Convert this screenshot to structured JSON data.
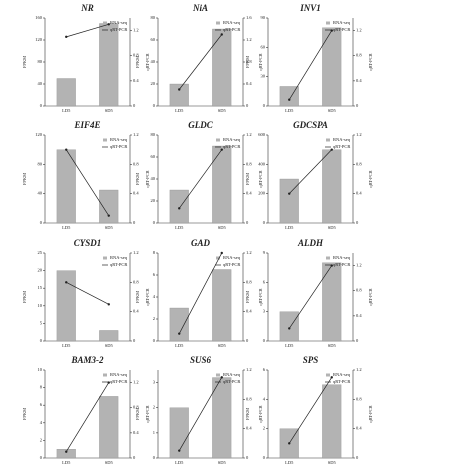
{
  "chart_data": [
    {
      "type": "bar",
      "title": "NR",
      "categories": [
        "LD5",
        "SD5"
      ],
      "ylabel": "FPKM",
      "y2label": "qRT-PCR",
      "series": [
        {
          "name": "RNA-seq",
          "color": "#b3b3b3",
          "values": [
            50,
            150
          ]
        },
        {
          "name": "qRT-PCR",
          "color": "#222222",
          "axis": "y2",
          "values": [
            1.1,
            1.3
          ]
        }
      ],
      "ylim": [
        0,
        160
      ],
      "yticks": [
        0,
        40,
        80,
        120,
        160
      ],
      "y2lim": [
        0,
        1.4
      ],
      "y2ticks": [
        0,
        0.4,
        0.8,
        1.2
      ]
    },
    {
      "type": "bar",
      "title": "NiA",
      "categories": [
        "LD5",
        "SD5"
      ],
      "ylabel": "FPKM",
      "y2label": "qRT-PCR",
      "series": [
        {
          "name": "RNA-seq",
          "color": "#b3b3b3",
          "values": [
            20,
            70
          ]
        },
        {
          "name": "qRT-PCR",
          "color": "#222222",
          "axis": "y2",
          "values": [
            0.3,
            1.3
          ]
        }
      ],
      "ylim": [
        0,
        80
      ],
      "yticks": [
        0,
        20,
        40,
        60,
        80
      ],
      "y2lim": [
        0,
        1.6
      ],
      "y2ticks": [
        0,
        0.4,
        0.8,
        1.2,
        1.6
      ]
    },
    {
      "type": "bar",
      "title": "INV1",
      "categories": [
        "LD5",
        "SD5"
      ],
      "ylabel": "FPKM",
      "y2label": "qRT-PCR",
      "series": [
        {
          "name": "RNA-seq",
          "color": "#b3b3b3",
          "values": [
            20,
            80
          ]
        },
        {
          "name": "qRT-PCR",
          "color": "#222222",
          "axis": "y2",
          "values": [
            0.1,
            1.2
          ]
        }
      ],
      "ylim": [
        0,
        90
      ],
      "yticks": [
        0,
        30,
        60,
        90
      ],
      "y2lim": [
        0,
        1.4
      ],
      "y2ticks": [
        0,
        0.4,
        0.8,
        1.2
      ]
    },
    {
      "type": "bar",
      "title": "EIF4E",
      "categories": [
        "LD5",
        "SD5"
      ],
      "ylabel": "FPKM",
      "y2label": "qRT-PCR",
      "series": [
        {
          "name": "RNA-seq",
          "color": "#b3b3b3",
          "values": [
            100,
            45
          ]
        },
        {
          "name": "qRT-PCR",
          "color": "#222222",
          "axis": "y2",
          "values": [
            1,
            0.1
          ]
        }
      ],
      "ylim": [
        0,
        120
      ],
      "yticks": [
        0,
        40,
        80,
        120
      ],
      "y2lim": [
        0,
        1.2
      ],
      "y2ticks": [
        0,
        0.4,
        0.8,
        1.2
      ]
    },
    {
      "type": "bar",
      "title": "GLDC",
      "categories": [
        "LD5",
        "SD5"
      ],
      "ylabel": "FPKM",
      "y2label": "qRT-PCR",
      "series": [
        {
          "name": "RNA-seq",
          "color": "#b3b3b3",
          "values": [
            30,
            70
          ]
        },
        {
          "name": "qRT-PCR",
          "color": "#222222",
          "axis": "y2",
          "values": [
            0.2,
            1
          ]
        }
      ],
      "ylim": [
        0,
        80
      ],
      "yticks": [
        0,
        20,
        40,
        60,
        80
      ],
      "y2lim": [
        0,
        1.2
      ],
      "y2ticks": [
        0,
        0.4,
        0.8,
        1.2
      ]
    },
    {
      "type": "bar",
      "title": "GDCSPA",
      "categories": [
        "LD5",
        "SD5"
      ],
      "ylabel": "FPKM",
      "y2label": "qRT-PCR",
      "series": [
        {
          "name": "RNA-seq",
          "color": "#b3b3b3",
          "values": [
            300,
            500
          ]
        },
        {
          "name": "qRT-PCR",
          "color": "#222222",
          "axis": "y2",
          "values": [
            0.4,
            1
          ]
        }
      ],
      "ylim": [
        0,
        600
      ],
      "yticks": [
        0,
        200,
        400,
        600
      ],
      "y2lim": [
        0,
        1.2
      ],
      "y2ticks": [
        0,
        0.4,
        0.8,
        1.2
      ]
    },
    {
      "type": "bar",
      "title": "CYSD1",
      "categories": [
        "LD5",
        "SD5"
      ],
      "ylabel": "FPKM",
      "y2label": "qRT-PCR",
      "series": [
        {
          "name": "RNA-seq",
          "color": "#b3b3b3",
          "values": [
            20,
            3
          ]
        },
        {
          "name": "qRT-PCR",
          "color": "#222222",
          "axis": "y2",
          "values": [
            0.8,
            0.5
          ]
        }
      ],
      "ylim": [
        0,
        25
      ],
      "yticks": [
        0,
        5,
        10,
        15,
        20,
        25
      ],
      "y2lim": [
        0,
        1.2
      ],
      "y2ticks": [
        0,
        0.4,
        0.8,
        1.2
      ]
    },
    {
      "type": "bar",
      "title": "GAD",
      "categories": [
        "LD5",
        "SD5"
      ],
      "ylabel": "FPKM",
      "y2label": "qRT-PCR",
      "series": [
        {
          "name": "RNA-seq",
          "color": "#b3b3b3",
          "values": [
            3,
            6.5
          ]
        },
        {
          "name": "qRT-PCR",
          "color": "#222222",
          "axis": "y2",
          "values": [
            0.1,
            1.2
          ]
        }
      ],
      "ylim": [
        0,
        8
      ],
      "yticks": [
        0,
        2,
        4,
        6,
        8
      ],
      "y2lim": [
        0,
        1.2
      ],
      "y2ticks": [
        0,
        0.4,
        0.8,
        1.2
      ]
    },
    {
      "type": "bar",
      "title": "ALDH",
      "categories": [
        "LD5",
        "SD5"
      ],
      "ylabel": "FPKM",
      "y2label": "qRT-PCR",
      "series": [
        {
          "name": "RNA-seq",
          "color": "#b3b3b3",
          "values": [
            3,
            8
          ]
        },
        {
          "name": "qRT-PCR",
          "color": "#222222",
          "axis": "y2",
          "values": [
            0.2,
            1.2
          ]
        }
      ],
      "ylim": [
        0,
        9
      ],
      "yticks": [
        0,
        3,
        6,
        9
      ],
      "y2lim": [
        0,
        1.4
      ],
      "y2ticks": [
        0,
        0.4,
        0.8,
        1.2
      ]
    },
    {
      "type": "bar",
      "title": "BAM3-2",
      "categories": [
        "LD5",
        "SD5"
      ],
      "ylabel": "FPKM",
      "y2label": "qRT-PCR",
      "series": [
        {
          "name": "RNA-seq",
          "color": "#b3b3b3",
          "values": [
            1,
            7
          ]
        },
        {
          "name": "qRT-PCR",
          "color": "#222222",
          "axis": "y2",
          "values": [
            0.1,
            1.2
          ]
        }
      ],
      "ylim": [
        0,
        10
      ],
      "yticks": [
        0,
        2,
        4,
        6,
        8,
        10
      ],
      "y2lim": [
        0,
        1.4
      ],
      "y2ticks": [
        0,
        0.4,
        0.8,
        1.2
      ]
    },
    {
      "type": "bar",
      "title": "SUS6",
      "categories": [
        "LD5",
        "SD5"
      ],
      "ylabel": "FPKM",
      "y2label": "qRT-PCR",
      "series": [
        {
          "name": "RNA-seq",
          "color": "#b3b3b3",
          "values": [
            2,
            3.2
          ]
        },
        {
          "name": "qRT-PCR",
          "color": "#222222",
          "axis": "y2",
          "values": [
            0.1,
            1.1
          ]
        }
      ],
      "ylim": [
        0,
        3.5
      ],
      "yticks": [
        0,
        1,
        2,
        3
      ],
      "y2lim": [
        0,
        1.2
      ],
      "y2ticks": [
        0,
        0.4,
        0.8,
        1.2
      ]
    },
    {
      "type": "bar",
      "title": "SPS",
      "categories": [
        "LD5",
        "SD5"
      ],
      "ylabel": "FPKM",
      "y2label": "qRT-PCR",
      "series": [
        {
          "name": "RNA-seq",
          "color": "#b3b3b3",
          "values": [
            2,
            5
          ]
        },
        {
          "name": "qRT-PCR",
          "color": "#222222",
          "axis": "y2",
          "values": [
            0.2,
            1.1
          ]
        }
      ],
      "ylim": [
        0,
        6
      ],
      "yticks": [
        0,
        2,
        4,
        6
      ],
      "y2lim": [
        0,
        1.2
      ],
      "y2ticks": [
        0,
        0.4,
        0.8,
        1.2
      ]
    }
  ]
}
